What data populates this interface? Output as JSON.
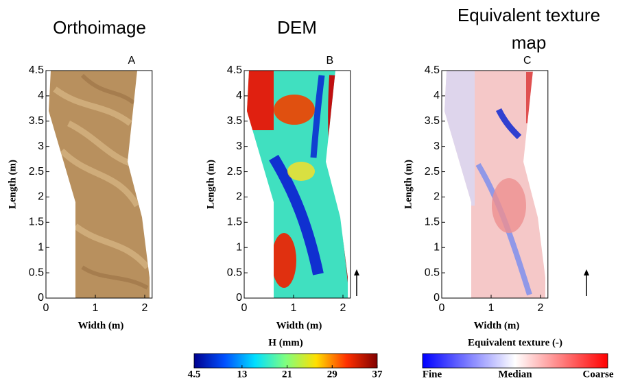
{
  "chart_data": [
    {
      "type": "image",
      "title": "Orthoimage",
      "panel_label": "A",
      "x_label": "Width (m)",
      "y_label": "Length (m)",
      "xlim": [
        0,
        2.15
      ],
      "ylim": [
        0,
        4.5
      ],
      "xticks": [
        0,
        1,
        2
      ],
      "yticks": [
        0,
        0.5,
        1,
        1.5,
        2,
        2.5,
        3,
        3.5,
        4,
        4.5
      ]
    },
    {
      "type": "image",
      "title": "DEM",
      "panel_label": "B",
      "x_label": "Width (m)",
      "y_label": "Length (m)",
      "xlim": [
        0,
        2.15
      ],
      "ylim": [
        0,
        4.5
      ],
      "xticks": [
        0,
        1,
        2
      ],
      "yticks": [
        0,
        0.5,
        1,
        1.5,
        2,
        2.5,
        3,
        3.5,
        4,
        4.5
      ],
      "colorbar": {
        "label": "H (mm)",
        "lim": [
          4.5,
          37
        ],
        "ticks": [
          4.5,
          13,
          21,
          29,
          37
        ],
        "colors": [
          "#00008f",
          "#0050ff",
          "#00dfff",
          "#7fff7f",
          "#ffdf00",
          "#ff3000",
          "#800000"
        ]
      }
    },
    {
      "type": "image",
      "title": "Equivalent texture map",
      "panel_label": "C",
      "x_label": "Width (m)",
      "y_label": "Length (m)",
      "xlim": [
        0,
        2.15
      ],
      "ylim": [
        0,
        4.5
      ],
      "xticks": [
        0,
        1,
        2
      ],
      "yticks": [
        0,
        0.5,
        1,
        1.5,
        2,
        2.5,
        3,
        3.5,
        4,
        4.5
      ],
      "colorbar": {
        "label": "Equivalent texture (-)",
        "categories": [
          "Fine",
          "Median",
          "Coarse"
        ],
        "colors": [
          "#0000ff",
          "#ffffff",
          "#ff0000"
        ]
      }
    }
  ]
}
